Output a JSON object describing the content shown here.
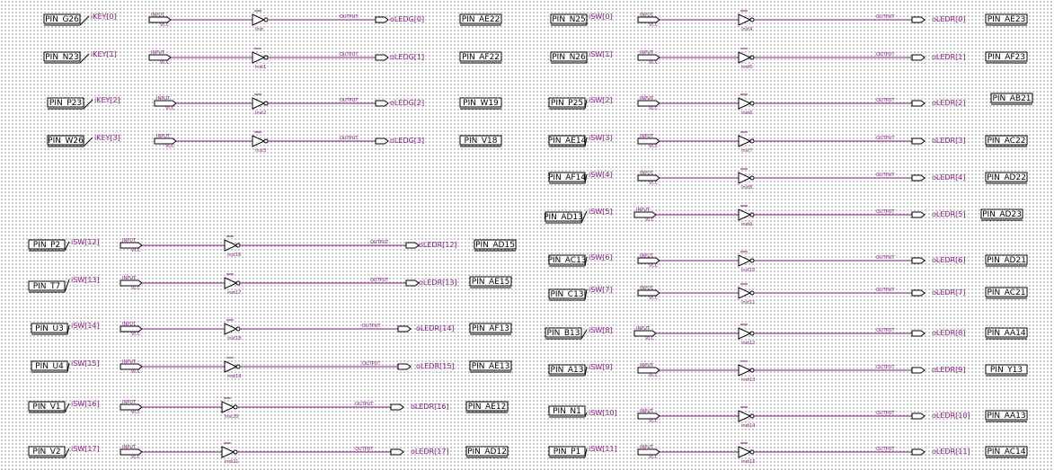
{
  "schematic": {
    "decor": {
      "vcc": "VCC",
      "input": "INPUT",
      "output": "OUTPUT"
    },
    "channels": [
      {
        "in_pin": "PIN_G26",
        "in_sig": "iKEY[0]",
        "gate": "inst",
        "out_sig": "oLEDG[0]",
        "out_pin": "PIN_AE22"
      },
      {
        "in_pin": "PIN_N23",
        "in_sig": "iKEY[1]",
        "gate": "inst1",
        "out_sig": "oLEDG[1]",
        "out_pin": "PIN_AF22"
      },
      {
        "in_pin": "PIN_P23",
        "in_sig": "iKEY[2]",
        "gate": "inst2",
        "out_sig": "oLEDG[2]",
        "out_pin": "PIN_W19"
      },
      {
        "in_pin": "PIN_W26",
        "in_sig": "iKEY[3]",
        "gate": "inst3",
        "out_sig": "oLEDG[3]",
        "out_pin": "PIN_V18"
      },
      {
        "in_pin": "PIN_P2",
        "in_sig": "iSW[12]",
        "gate": "inst16",
        "out_sig": "oLEDR[12]",
        "out_pin": "PIN_AD15"
      },
      {
        "in_pin": "PIN_T7",
        "in_sig": "iSW[13]",
        "gate": "inst17",
        "out_sig": "oLEDR[13]",
        "out_pin": "PIN_AE15"
      },
      {
        "in_pin": "PIN_U3",
        "in_sig": "iSW[14]",
        "gate": "inst18",
        "out_sig": "oLEDR[14]",
        "out_pin": "PIN_AF13"
      },
      {
        "in_pin": "PIN_U4",
        "in_sig": "iSW[15]",
        "gate": "inst19",
        "out_sig": "oLEDR[15]",
        "out_pin": "PIN_AE13"
      },
      {
        "in_pin": "PIN_V1",
        "in_sig": "iSW[16]",
        "gate": "inst20",
        "out_sig": "oLEDR[16]",
        "out_pin": "PIN_AE12"
      },
      {
        "in_pin": "PIN_V2",
        "in_sig": "iSW[17]",
        "gate": "inst21",
        "out_sig": "oLEDR[17]",
        "out_pin": "PIN_AD12"
      },
      {
        "in_pin": "PIN_N25",
        "in_sig": "iSW[0]",
        "gate": "inst4",
        "out_sig": "oLEDR[0]",
        "out_pin": "PIN_AE23"
      },
      {
        "in_pin": "PIN_N26",
        "in_sig": "iSW[1]",
        "gate": "inst5",
        "out_sig": "oLEDR[1]",
        "out_pin": "PIN_AF23"
      },
      {
        "in_pin": "PIN_P25",
        "in_sig": "iSW[2]",
        "gate": "inst6",
        "out_sig": "oLEDR[2]",
        "out_pin": "PIN_AB21"
      },
      {
        "in_pin": "PIN_AE14",
        "in_sig": "iSW[3]",
        "gate": "inst7",
        "out_sig": "oLEDR[3]",
        "out_pin": "PIN_AC22"
      },
      {
        "in_pin": "PIN_AF14",
        "in_sig": "iSW[4]",
        "gate": "inst8",
        "out_sig": "oLEDR[4]",
        "out_pin": "PIN_AD22"
      },
      {
        "in_pin": "PIN_AD13",
        "in_sig": "iSW[5]",
        "gate": "inst9",
        "out_sig": "oLEDR[5]",
        "out_pin": "PIN_AD23"
      },
      {
        "in_pin": "PIN_AC13",
        "in_sig": "iSW[6]",
        "gate": "inst10",
        "out_sig": "oLEDR[6]",
        "out_pin": "PIN_AD21"
      },
      {
        "in_pin": "PIN_C13",
        "in_sig": "iSW[7]",
        "gate": "inst11",
        "out_sig": "oLEDR[7]",
        "out_pin": "PIN_AC21"
      },
      {
        "in_pin": "PIN_B13",
        "in_sig": "iSW[8]",
        "gate": "inst12",
        "out_sig": "oLEDR[8]",
        "out_pin": "PIN_AA14"
      },
      {
        "in_pin": "PIN_A13",
        "in_sig": "iSW[9]",
        "gate": "inst13",
        "out_sig": "oLEDR[9]",
        "out_pin": "PIN_Y13"
      },
      {
        "in_pin": "PIN_N1",
        "in_sig": "iSW[10]",
        "gate": "inst14",
        "out_sig": "oLEDR[10]",
        "out_pin": "PIN_AA13"
      },
      {
        "in_pin": "PIN_P1",
        "in_sig": "iSW[11]",
        "gate": "inst15",
        "out_sig": "oLEDR[11]",
        "out_pin": "PIN_AC14"
      }
    ]
  }
}
